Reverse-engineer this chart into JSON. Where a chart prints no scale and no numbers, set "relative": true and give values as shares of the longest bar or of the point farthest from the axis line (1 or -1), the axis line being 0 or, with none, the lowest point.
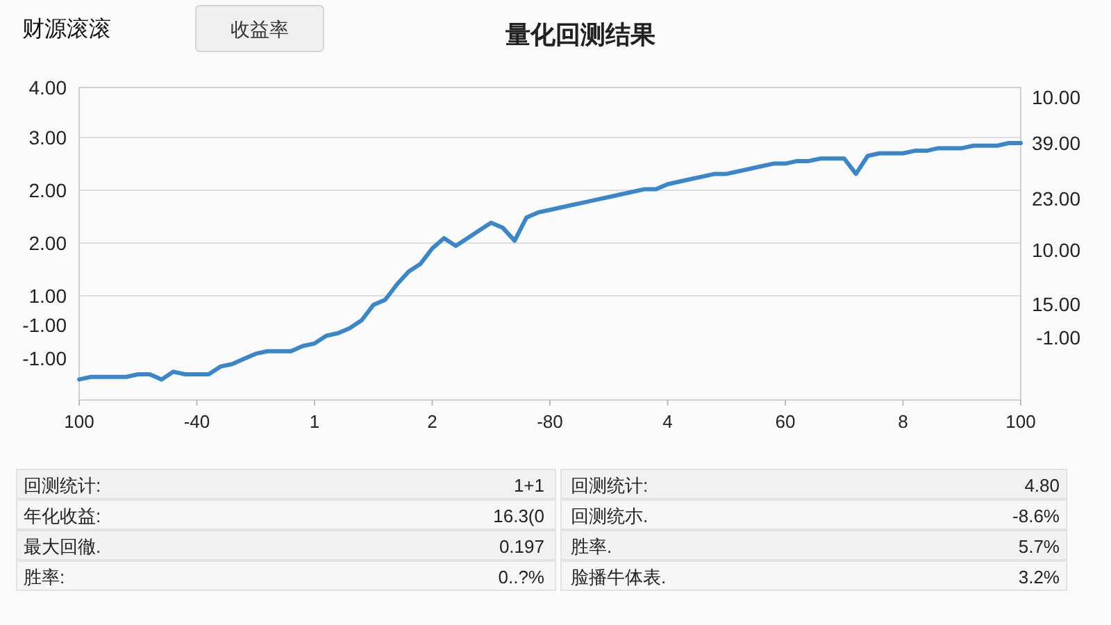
{
  "chart_data": {
    "type": "line",
    "title": "量化回测结果",
    "relative": true,
    "categories": [
      "100",
      null,
      null,
      null,
      null,
      null,
      null,
      null,
      null,
      null,
      "-40",
      null,
      null,
      null,
      null,
      null,
      null,
      null,
      null,
      null,
      "1",
      null,
      null,
      null,
      null,
      null,
      null,
      null,
      null,
      null,
      "2",
      null,
      null,
      null,
      null,
      null,
      null,
      null,
      null,
      null,
      "-80",
      null,
      null,
      null,
      null,
      null,
      null,
      null,
      null,
      null,
      "4",
      null,
      null,
      null,
      null,
      null,
      null,
      null,
      null,
      null,
      "60",
      null,
      null,
      null,
      null,
      null,
      null,
      null,
      null,
      null,
      "8",
      null,
      null,
      null,
      null,
      null,
      null,
      null,
      null,
      null,
      "100"
    ],
    "series": [
      {
        "color": "#3a86c8",
        "values": [
          0.08,
          0.09,
          0.09,
          0.09,
          0.09,
          0.1,
          0.1,
          0.08,
          0.11,
          0.1,
          0.1,
          0.1,
          0.13,
          0.14,
          0.16,
          0.18,
          0.19,
          0.19,
          0.19,
          0.21,
          0.22,
          0.25,
          0.26,
          0.28,
          0.31,
          0.37,
          0.39,
          0.45,
          0.5,
          0.53,
          0.59,
          0.63,
          0.6,
          0.63,
          0.66,
          0.69,
          0.67,
          0.62,
          0.71,
          0.73,
          0.74,
          0.75,
          0.76,
          0.77,
          0.78,
          0.79,
          0.8,
          0.81,
          0.82,
          0.82,
          0.84,
          0.85,
          0.86,
          0.87,
          0.88,
          0.88,
          0.89,
          0.9,
          0.91,
          0.92,
          0.92,
          0.93,
          0.93,
          0.94,
          0.94,
          0.94,
          0.88,
          0.95,
          0.96,
          0.96,
          0.96,
          0.97,
          0.97,
          0.98,
          0.98,
          0.98,
          0.99,
          0.99,
          0.99,
          1.0,
          1.0
        ]
      }
    ],
    "grid": "y",
    "annotations": [
      "财源滚滚",
      "收益率",
      "4.00",
      "3.00",
      "2.00",
      "2.00",
      "1.00",
      "-1.00",
      "-1.00",
      "10.00",
      "39.00",
      "23.00",
      "10.00",
      "15.00",
      "-1.00",
      "回测统计:",
      "1+1",
      "回测统计:",
      "4.80",
      "年化收益:",
      "16.3(0",
      "回测统朩.",
      "-8.6%",
      "最大回徹.",
      "0.197",
      "胜率.",
      "5.7%",
      "胜率:",
      "0..?%",
      "脸播牛体表.",
      "3.2%"
    ]
  }
}
